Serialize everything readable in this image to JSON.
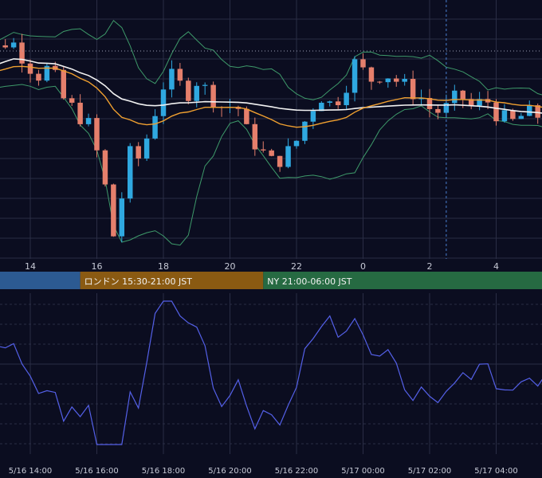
{
  "chart_data": {
    "type": "candlestick",
    "colors": {
      "background": "#0b0d20",
      "grid": "#2a2d45",
      "bull": "#2fa8e0",
      "bear": "#e57f6c",
      "ema_short": "#f0a030",
      "sma_long": "#f2f2f2",
      "bollinger": "#3e9a6a",
      "oscillator": "#5460e8",
      "crosshair": "#4a7fd0",
      "dotted_level": "#9aa0b4"
    },
    "main_panel": {
      "x_ticks": [
        "14",
        "16",
        "18",
        "20",
        "22",
        "0",
        "2",
        "4"
      ],
      "grid": true
    },
    "sessions": [
      {
        "label": "",
        "color": "#2c5a92",
        "start_hour": 12.0,
        "end_hour": 15.5
      },
      {
        "label": "ロンドン 15:30-21:00 JST",
        "color": "#8a5a12",
        "start_hour": 15.5,
        "end_hour": 21.0
      },
      {
        "label": "NY 21:00-06:00 JST",
        "color": "#266a42",
        "start_hour": 21.0,
        "end_hour": 30.0
      }
    ],
    "oscillator_panel": {
      "grid": true,
      "x_ticks": [
        "5/16 14:00",
        "5/16 16:00",
        "5/16 18:00",
        "5/16 20:00",
        "5/16 22:00",
        "5/17 00:00",
        "5/17 02:00",
        "5/17 04:00"
      ]
    },
    "crosshair_hour": 26.5,
    "series": [
      {
        "name": "candles",
        "note": "OHLC read from chart, hours 12.0-30.0 in 0.25h steps (relative units 0-100)"
      }
    ]
  }
}
